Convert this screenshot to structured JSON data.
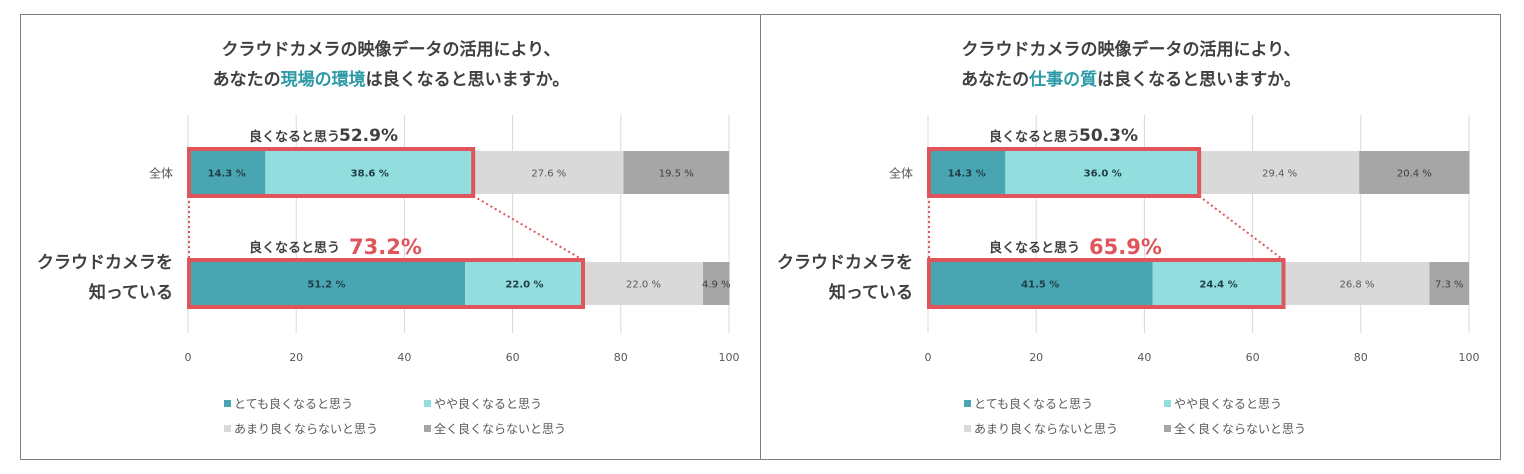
{
  "colors": {
    "dark_teal": "#4aa5b3",
    "light_teal": "#92ddde",
    "light_gray": "#d9d9d9",
    "dark_gray": "#a6a6a6",
    "highlight_red": "#e0555b",
    "title_highlight": "#2b9aa6"
  },
  "chart_data": [
    {
      "type": "bar",
      "orientation": "horizontal",
      "stacked": true,
      "title_line1": "クラウドカメラの映像データの活用により、",
      "title_line2_prefix": "あなたの",
      "title_line2_highlight": "現場の環境",
      "title_line2_suffix": "は良くなると思いますか。",
      "categories": [
        "全体",
        "クラウドカメラを知っている"
      ],
      "category_lines": [
        [
          "全体"
        ],
        [
          "クラウドカメラを",
          "知っている"
        ]
      ],
      "series": [
        {
          "name": "とても良くなると思う",
          "values": [
            14.3,
            51.2
          ],
          "labels": [
            "14.3 %",
            "51.2 %"
          ]
        },
        {
          "name": "やや良くなると思う",
          "values": [
            38.6,
            22.0
          ],
          "labels": [
            "38.6 %",
            "22.0 %"
          ]
        },
        {
          "name": "あまり良くならないと思う",
          "values": [
            27.6,
            22.0
          ],
          "labels": [
            "27.6 %",
            "22.0 %"
          ]
        },
        {
          "name": "全く良くならないと思う",
          "values": [
            19.5,
            4.9
          ],
          "labels": [
            "19.5 %",
            "4.9 %"
          ]
        }
      ],
      "summary_label": "良くなると思う",
      "summary_values": [
        "52.9%",
        "73.2%"
      ],
      "xlim": [
        0,
        100
      ],
      "xticks": [
        "0",
        "20",
        "40",
        "60",
        "80",
        "100"
      ],
      "grid": true,
      "legend_position": "bottom"
    },
    {
      "type": "bar",
      "orientation": "horizontal",
      "stacked": true,
      "title_line1": "クラウドカメラの映像データの活用により、",
      "title_line2_prefix": "あなたの",
      "title_line2_highlight": "仕事の質",
      "title_line2_suffix": "は良くなると思いますか。",
      "categories": [
        "全体",
        "クラウドカメラを知っている"
      ],
      "category_lines": [
        [
          "全体"
        ],
        [
          "クラウドカメラを",
          "知っている"
        ]
      ],
      "series": [
        {
          "name": "とても良くなると思う",
          "values": [
            14.3,
            41.5
          ],
          "labels": [
            "14.3 %",
            "41.5 %"
          ]
        },
        {
          "name": "やや良くなると思う",
          "values": [
            36.0,
            24.4
          ],
          "labels": [
            "36.0 %",
            "24.4 %"
          ]
        },
        {
          "name": "あまり良くならないと思う",
          "values": [
            29.4,
            26.8
          ],
          "labels": [
            "29.4 %",
            "26.8 %"
          ]
        },
        {
          "name": "全く良くならないと思う",
          "values": [
            20.4,
            7.3
          ],
          "labels": [
            "20.4 %",
            "7.3 %"
          ]
        }
      ],
      "summary_label": "良くなると思う",
      "summary_values": [
        "50.3%",
        "65.9%"
      ],
      "xlim": [
        0,
        100
      ],
      "xticks": [
        "0",
        "20",
        "40",
        "60",
        "80",
        "100"
      ],
      "grid": true,
      "legend_position": "bottom"
    }
  ]
}
